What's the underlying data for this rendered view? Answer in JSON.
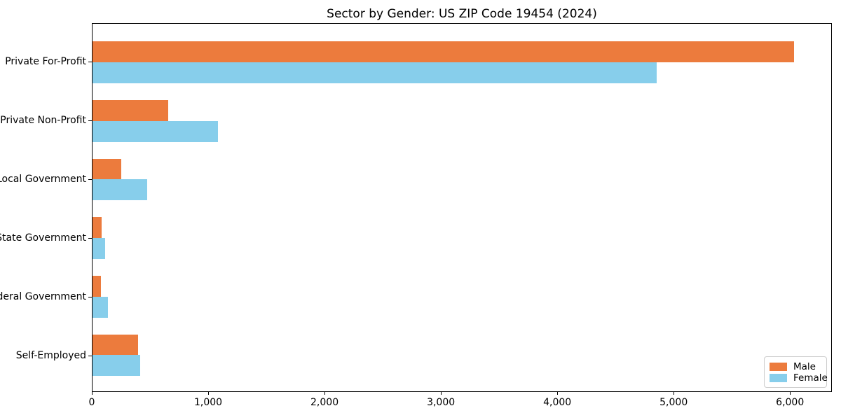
{
  "chart_data": {
    "type": "bar",
    "orientation": "horizontal",
    "title": "Sector by Gender: US ZIP Code 19454 (2024)",
    "xlabel": "",
    "ylabel": "",
    "categories": [
      "Private For-Profit",
      "Private Non-Profit",
      "Local Government",
      "State Government",
      "Federal Government",
      "Self-Employed"
    ],
    "series": [
      {
        "name": "Male",
        "color": "#ec7b3d",
        "values": [
          6040,
          650,
          250,
          80,
          75,
          390
        ]
      },
      {
        "name": "Female",
        "color": "#87ceeb",
        "values": [
          4860,
          1080,
          470,
          110,
          135,
          410
        ]
      }
    ],
    "xlim": [
      0,
      6360
    ],
    "x_ticks": [
      0,
      1000,
      2000,
      3000,
      4000,
      5000,
      6000
    ],
    "x_tick_labels": [
      "0",
      "1,000",
      "2,000",
      "3,000",
      "4,000",
      "5,000",
      "6,000"
    ],
    "legend_position": "lower right",
    "grid": false,
    "colors": {
      "male": "#ec7b3d",
      "female": "#87ceeb",
      "spine": "#000000",
      "background": "#ffffff"
    }
  }
}
